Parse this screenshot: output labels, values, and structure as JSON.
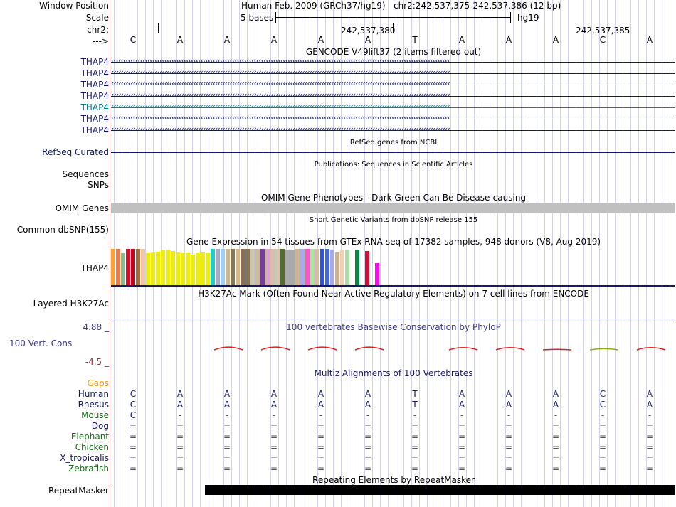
{
  "header": {
    "window_position_label": "Window Position",
    "scale_label": "Scale",
    "chr_label": "chr2:",
    "arrow_label": "--->",
    "assembly": "Human Feb. 2009 (GRCh37/hg19)",
    "position": "chr2:242,537,375-242,537,386 (12 bp)",
    "scale_text": "5 bases",
    "db": "hg19",
    "coord_1": "242,537,380",
    "coord_2": "242,537,385"
  },
  "bases": [
    "C",
    "A",
    "A",
    "A",
    "A",
    "A",
    "T",
    "A",
    "A",
    "A",
    "C",
    "A"
  ],
  "gencode": {
    "title": "GENCODE V49lift37 (2 items filtered out)",
    "genes": [
      {
        "label": "THAP4",
        "color": "#141a64"
      },
      {
        "label": "THAP4",
        "color": "#141a64"
      },
      {
        "label": "THAP4",
        "color": "#141a64"
      },
      {
        "label": "THAP4",
        "color": "#141a64"
      },
      {
        "label": "THAP4",
        "color": "#0d7c8f"
      },
      {
        "label": "THAP4",
        "color": "#141a64"
      },
      {
        "label": "THAP4",
        "color": "#141a64"
      }
    ]
  },
  "refseq": {
    "title": "RefSeq genes from NCBI",
    "label": "RefSeq Curated"
  },
  "publications": {
    "title": "Publications: Sequences in Scientific Articles",
    "label_1": "Sequences",
    "label_2": "SNPs"
  },
  "omim": {
    "title": "OMIM Gene Phenotypes - Dark Green Can Be Disease-causing",
    "label": "OMIM Genes",
    "color": "#0e5e0e"
  },
  "dbsnp": {
    "title": "Short Genetic Variants from dbSNP release 155",
    "label": "Common dbSNP(155)"
  },
  "gtex": {
    "title": "Gene Expression in 54 tissues from GTEx RNA-seq of 17382 samples, 948 donors (V8, Aug 2019)",
    "label": "THAP4",
    "bars": [
      {
        "c": "#f5a23a",
        "v": 1.0
      },
      {
        "c": "#e97a4a",
        "v": 1.0
      },
      {
        "c": "#8fba8f",
        "v": 0.88
      },
      {
        "c": "#cc1133",
        "v": 1.0
      },
      {
        "c": "#bb0a22",
        "v": 1.0
      },
      {
        "c": "#a66b3d",
        "v": 1.0
      },
      {
        "c": "#f0c8a8",
        "v": 1.0
      },
      {
        "c": "#ecec12",
        "v": 0.88
      },
      {
        "c": "#ecec12",
        "v": 0.9
      },
      {
        "c": "#ecec12",
        "v": 0.92
      },
      {
        "c": "#ecec12",
        "v": 0.98
      },
      {
        "c": "#ecec12",
        "v": 0.98
      },
      {
        "c": "#ecec12",
        "v": 0.95
      },
      {
        "c": "#ecec12",
        "v": 0.9
      },
      {
        "c": "#ecec12",
        "v": 0.88
      },
      {
        "c": "#ecec12",
        "v": 0.88
      },
      {
        "c": "#ecec12",
        "v": 0.85
      },
      {
        "c": "#ecec12",
        "v": 0.88
      },
      {
        "c": "#ecec12",
        "v": 0.9
      },
      {
        "c": "#ecec12",
        "v": 0.88
      },
      {
        "c": "#22cccc",
        "v": 1.0
      },
      {
        "c": "#a8a8c8",
        "v": 1.0
      },
      {
        "c": "#9bd0f0",
        "v": 1.0
      },
      {
        "c": "#c8b898",
        "v": 1.0
      },
      {
        "c": "#887755",
        "v": 1.0
      },
      {
        "c": "#d8b88a",
        "v": 1.0
      },
      {
        "c": "#8a7055",
        "v": 1.0
      },
      {
        "c": "#8a7055",
        "v": 1.0
      },
      {
        "c": "#c8c8a8",
        "v": 1.0
      },
      {
        "c": "#d2b89a",
        "v": 1.0
      },
      {
        "c": "#7a3aa0",
        "v": 1.0
      },
      {
        "c": "#e0a0c8",
        "v": 1.0
      },
      {
        "c": "#ddbbaa",
        "v": 1.0
      },
      {
        "c": "#d6c4ac",
        "v": 1.0
      },
      {
        "c": "#556b2f",
        "v": 1.0
      },
      {
        "c": "#aaaaaa",
        "v": 0.98
      },
      {
        "c": "#aaaaaa",
        "v": 0.98
      },
      {
        "c": "#d2b48c",
        "v": 1.0
      },
      {
        "c": "#aaaaee",
        "v": 1.0
      },
      {
        "c": "#ff55cc",
        "v": 1.0
      },
      {
        "c": "#b0e0a0",
        "v": 1.0
      },
      {
        "c": "#d8c0a0",
        "v": 1.0
      },
      {
        "c": "#3355cc",
        "v": 1.0
      },
      {
        "c": "#4466dd",
        "v": 1.0
      },
      {
        "c": "#aaaadd",
        "v": 0.98
      },
      {
        "c": "#d0b090",
        "v": 0.9
      },
      {
        "c": "#f0d0b0",
        "v": 0.98
      },
      {
        "c": "#aaddaa",
        "v": 0.98
      },
      {
        "c": "#eeeeee",
        "v": 0.0
      },
      {
        "c": "#008844",
        "v": 0.98
      },
      {
        "c": "#ffffff",
        "v": 0.0
      },
      {
        "c": "#cc1133",
        "v": 0.95
      },
      {
        "c": "#ffffff",
        "v": 0.0
      },
      {
        "c": "#ee11ee",
        "v": 0.6
      }
    ]
  },
  "h3k27ac": {
    "title": "H3K27Ac Mark (Often Found Near Active Regulatory Elements) on 7 cell lines from ENCODE",
    "label": "Layered H3K27Ac"
  },
  "cons": {
    "title": "100 vertebrates Basewise Conservation by PhyloP",
    "label": "100 Vert. Cons",
    "ymax": "4.88 _",
    "ymin": "-4.5 _",
    "values": [
      0,
      0.6,
      0.6,
      0.6,
      0.6,
      0.0,
      0.5,
      0.5,
      0.05,
      0.25,
      0.5
    ],
    "colors": [
      "#ffffff",
      "#dd2222",
      "#dd2222",
      "#dd2222",
      "#dd2222",
      "#22aa22",
      "#dd2222",
      "#dd2222",
      "#dd2222",
      "#99aa11",
      "#dd2222"
    ]
  },
  "multiz": {
    "title": "Multiz Alignments of 100 Vertebrates",
    "gaps_label": "Gaps",
    "species": [
      {
        "name": "Human",
        "color": "#141a64",
        "seq": [
          "C",
          "A",
          "A",
          "A",
          "A",
          "A",
          "T",
          "A",
          "A",
          "A",
          "C",
          "A"
        ]
      },
      {
        "name": "Rhesus",
        "color": "#141a64",
        "seq": [
          "C",
          "A",
          "A",
          "A",
          "A",
          "A",
          "T",
          "A",
          "A",
          "A",
          "C",
          "A"
        ]
      },
      {
        "name": "Mouse",
        "color": "#1a6e1a",
        "seq": [
          "C",
          "-",
          "-",
          "-",
          "-",
          "-",
          "-",
          "-",
          "-",
          "-",
          "-",
          "-"
        ]
      },
      {
        "name": "Dog",
        "color": "#141a64",
        "seq": [
          "=",
          "=",
          "=",
          "=",
          "=",
          "=",
          "=",
          "=",
          "=",
          "=",
          "=",
          "="
        ]
      },
      {
        "name": "Elephant",
        "color": "#1a6e1a",
        "seq": [
          "=",
          "=",
          "=",
          "=",
          "=",
          "=",
          "=",
          "=",
          "=",
          "=",
          "=",
          "="
        ]
      },
      {
        "name": "Chicken",
        "color": "#1a6e1a",
        "seq": [
          "=",
          "=",
          "=",
          "=",
          "=",
          "=",
          "=",
          "=",
          "=",
          "=",
          "=",
          "="
        ]
      },
      {
        "name": "X_tropicalis",
        "color": "#141a64",
        "seq": [
          "=",
          "=",
          "=",
          "=",
          "=",
          "=",
          "=",
          "=",
          "=",
          "=",
          "=",
          "="
        ]
      },
      {
        "name": "Zebrafish",
        "color": "#1a6e1a",
        "seq": [
          "=",
          "=",
          "=",
          "=",
          "=",
          "=",
          "=",
          "=",
          "=",
          "=",
          "=",
          "="
        ]
      }
    ]
  },
  "repeat": {
    "title": "Repeating Elements by RepeatMasker",
    "label": "RepeatMasker"
  }
}
